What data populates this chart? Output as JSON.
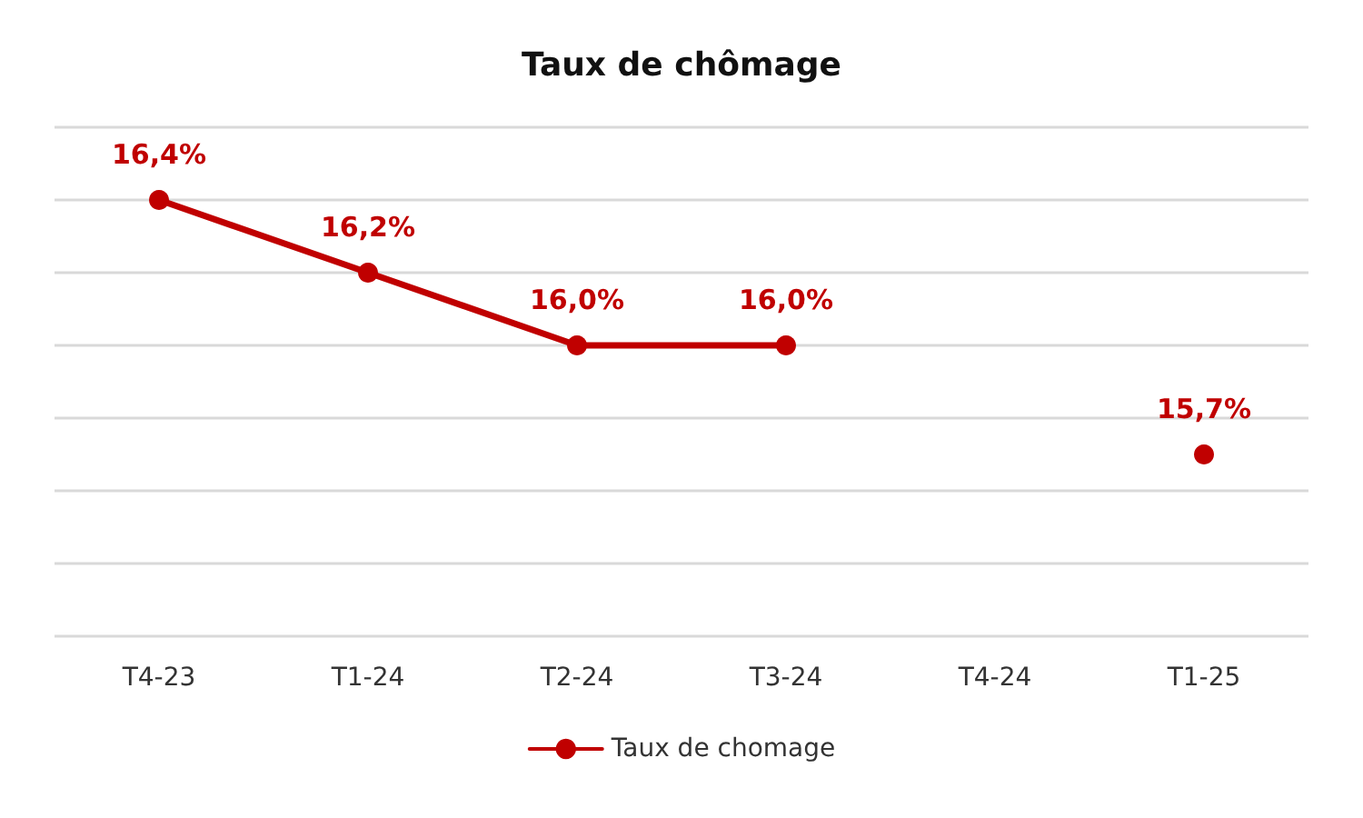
{
  "chart_data": {
    "type": "line",
    "title": "Taux de chômage",
    "categories": [
      "T4-23",
      "T1-24",
      "T2-24",
      "T3-24",
      "T4-24",
      "T1-25"
    ],
    "series": [
      {
        "name": "Taux de chomage",
        "color": "#c00000",
        "values": [
          16.4,
          16.2,
          16.0,
          16.0,
          null,
          15.7
        ],
        "value_labels": [
          "16,4%",
          "16,2%",
          "16,0%",
          "16,0%",
          null,
          "15,7%"
        ]
      }
    ],
    "ylim": [
      15.2,
      16.6
    ],
    "yticks": [
      {
        "value": 15.2,
        "label": null
      },
      {
        "value": 15.4,
        "label": null
      },
      {
        "value": 15.6,
        "label": null
      },
      {
        "value": 15.8,
        "label": null
      },
      {
        "value": 16.0,
        "label": null
      },
      {
        "value": 16.2,
        "label": null
      },
      {
        "value": 16.4,
        "label": null
      },
      {
        "value": 16.6,
        "label": null
      }
    ],
    "grid": "y",
    "legend": "bottom",
    "tick_labels": "x",
    "marker": "circle",
    "line_style": "solid"
  }
}
